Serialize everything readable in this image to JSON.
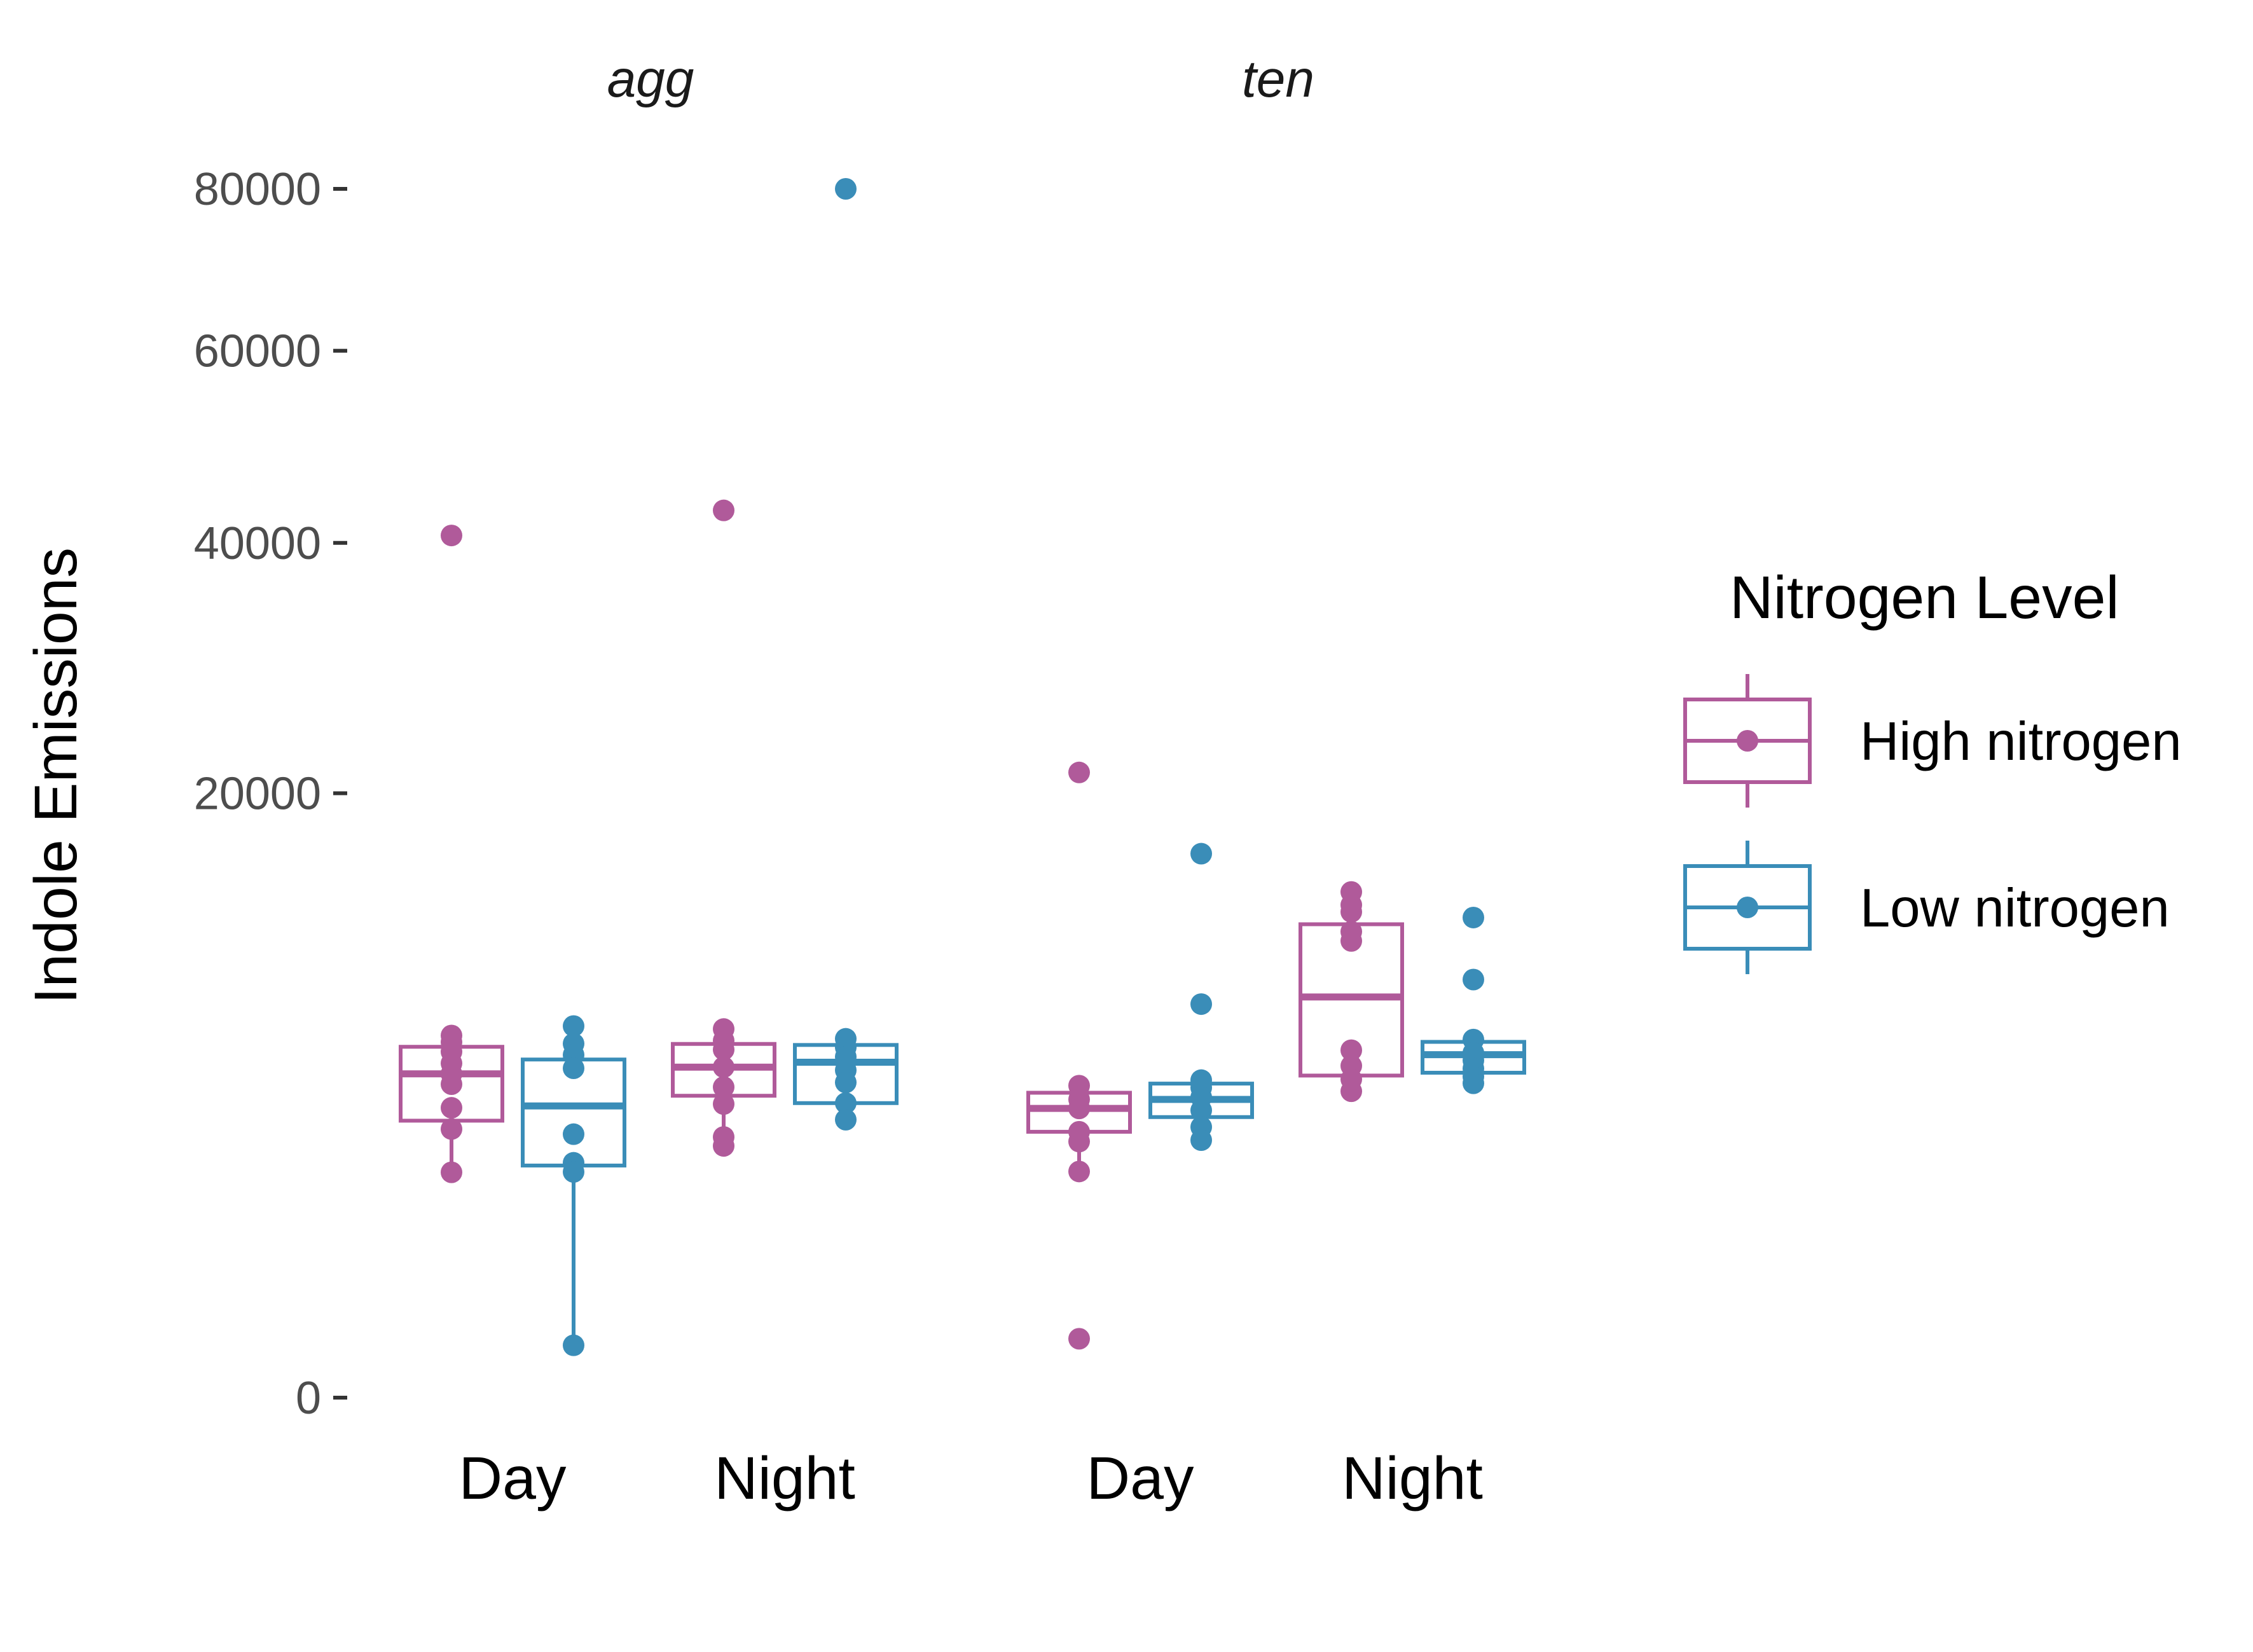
{
  "chart_data": {
    "type": "box",
    "ylabel": "Indole Emissions",
    "y_scale": "sqrt",
    "ylim": [
      0,
      80000
    ],
    "y_ticks": [
      0,
      20000,
      40000,
      60000,
      80000
    ],
    "y_tick_labels": [
      "0",
      "20000",
      "40000",
      "60000",
      "80000"
    ],
    "facets": [
      "agg",
      "ten"
    ],
    "categories": [
      "Day",
      "Night"
    ],
    "grid": false,
    "legend": {
      "title": "Nitrogen Level",
      "position": "right",
      "entries": [
        {
          "name": "High nitrogen",
          "color": "#B05A9A"
        },
        {
          "name": "Low nitrogen",
          "color": "#3A8DB8"
        }
      ]
    },
    "series": [
      {
        "name": "High nitrogen",
        "facet": "agg",
        "category": "Day",
        "box": {
          "lower_whisker": 2780,
          "q1": 4200,
          "median": 5740,
          "q3": 6740,
          "upper_whisker": 7180
        },
        "points": [
          40700,
          7180,
          6920,
          6550,
          6120,
          5740,
          5380,
          4600,
          3950,
          2780
        ]
      },
      {
        "name": "Low nitrogen",
        "facet": "agg",
        "category": "Day",
        "box": {
          "lower_whisker": 150,
          "q1": 2950,
          "median": 4660,
          "q3": 6260,
          "upper_whisker": 7560
        },
        "points": [
          7560,
          6860,
          6430,
          5940,
          3800,
          3020,
          2790,
          150
        ]
      },
      {
        "name": "High nitrogen",
        "facet": "agg",
        "category": "Night",
        "box": {
          "lower_whisker": 3470,
          "q1": 4990,
          "median": 5980,
          "q3": 6850,
          "upper_whisker": 7440
        },
        "points": [
          43100,
          7440,
          6980,
          6630,
          5980,
          5280,
          4720,
          3720,
          3470
        ]
      },
      {
        "name": "Low nitrogen",
        "facet": "agg",
        "category": "Night",
        "box": {
          "lower_whisker": 4230,
          "q1": 4750,
          "median": 6160,
          "q3": 6810,
          "upper_whisker": 7050
        },
        "points": [
          80000,
          7050,
          6720,
          6360,
          5870,
          5440,
          4750,
          4230
        ]
      },
      {
        "name": "High nitrogen",
        "facet": "ten",
        "category": "Day",
        "box": {
          "lower_whisker": 3040,
          "q1": 3870,
          "median": 4580,
          "q3": 5090,
          "upper_whisker": 5330
        },
        "points": [
          21400,
          5330,
          4870,
          4580,
          3870,
          3590,
          2800,
          190
        ]
      },
      {
        "name": "Low nitrogen",
        "facet": "ten",
        "category": "Day",
        "box": {
          "lower_whisker": 3630,
          "q1": 4310,
          "median": 4870,
          "q3": 5400,
          "upper_whisker": 5560
        },
        "points": [
          16200,
          8480,
          5520,
          5260,
          4940,
          4520,
          4010,
          3630
        ]
      },
      {
        "name": "High nitrogen",
        "facet": "ten",
        "category": "Night",
        "box": {
          "lower_whisker": 5140,
          "q1": 5680,
          "median": 8790,
          "q3": 12270,
          "upper_whisker": 14000
        },
        "points": [
          14000,
          13290,
          12920,
          11890,
          11420,
          6610,
          6030,
          5550,
          5140
        ]
      },
      {
        "name": "Low nitrogen",
        "facet": "ten",
        "category": "Night",
        "box": {
          "lower_whisker": 5410,
          "q1": 5780,
          "median": 6440,
          "q3": 6930,
          "upper_whisker": 7020
        },
        "points": [
          12620,
          9570,
          7020,
          6510,
          6230,
          5930,
          5640,
          5410
        ]
      }
    ]
  }
}
